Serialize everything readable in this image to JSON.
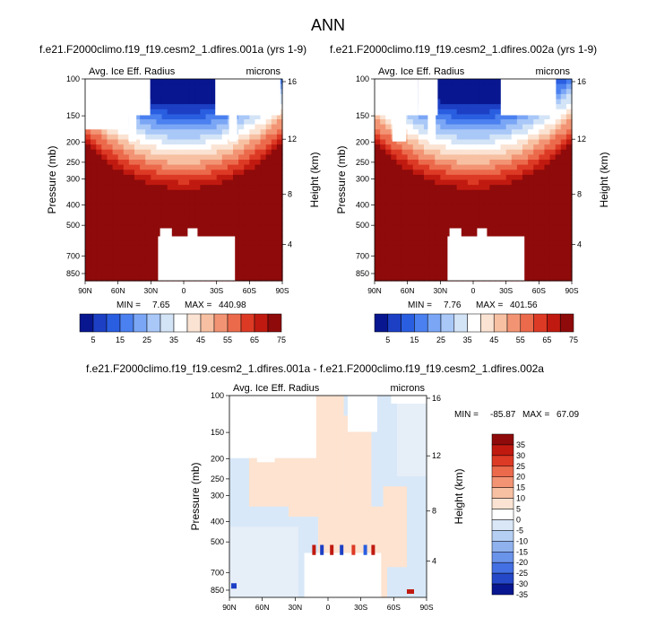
{
  "figure_title": "ANN",
  "chart_data": [
    {
      "type": "heatmap",
      "title": "f.e21.F2000climo.f19_f19.cesm2_1.dfires.001a (yrs 1-9)",
      "left_label": "Avg. Ice Eff. Radius",
      "right_label": "microns",
      "ylabel": "Pressure (mb)",
      "ylabel_right": "Height (km)",
      "x_ticks": [
        "90N",
        "60N",
        "30N",
        "0",
        "30S",
        "60S",
        "90S"
      ],
      "y_ticks": [
        "100",
        "150",
        "200",
        "250",
        "300",
        "400",
        "500",
        "700",
        "850"
      ],
      "y2_ticks": [
        "16",
        "12",
        "8",
        "4"
      ],
      "min": "7.65",
      "max": "440.98",
      "min_label": "MIN =",
      "max_label": "MAX =",
      "colorbar_ticks": [
        "5",
        "15",
        "25",
        "35",
        "45",
        "55",
        "65",
        "75"
      ]
    },
    {
      "type": "heatmap",
      "title": "f.e21.F2000climo.f19_f19.cesm2_1.dfires.002a (yrs 1-9)",
      "left_label": "Avg. Ice Eff. Radius",
      "right_label": "microns",
      "ylabel": "Pressure (mb)",
      "ylabel_right": "Height (km)",
      "x_ticks": [
        "90N",
        "60N",
        "30N",
        "0",
        "30S",
        "60S",
        "90S"
      ],
      "y_ticks": [
        "100",
        "150",
        "200",
        "250",
        "300",
        "400",
        "500",
        "700",
        "850"
      ],
      "y2_ticks": [
        "16",
        "12",
        "8",
        "4"
      ],
      "min": "7.76",
      "max": "401.56",
      "min_label": "MIN =",
      "max_label": "MAX =",
      "colorbar_ticks": [
        "5",
        "15",
        "25",
        "35",
        "45",
        "55",
        "65",
        "75"
      ]
    },
    {
      "type": "heatmap",
      "title": "f.e21.F2000climo.f19_f19.cesm2_1.dfires.001a - f.e21.F2000climo.f19_f19.cesm2_1.dfires.002a",
      "left_label": "Avg. Ice Eff. Radius",
      "right_label": "microns",
      "ylabel": "Pressure (mb)",
      "ylabel_right": "Height (km)",
      "x_ticks": [
        "90N",
        "60N",
        "30N",
        "0",
        "30S",
        "60S",
        "90S"
      ],
      "y_ticks": [
        "100",
        "150",
        "200",
        "250",
        "300",
        "400",
        "500",
        "700",
        "850"
      ],
      "y2_ticks": [
        "16",
        "12",
        "8",
        "4"
      ],
      "min": "-85.87",
      "max": "67.09",
      "min_label": "MIN =",
      "max_label": "MAX =",
      "colorbar_ticks": [
        "35",
        "30",
        "25",
        "20",
        "15",
        "10",
        "5",
        "0",
        "-5",
        "-10",
        "-15",
        "-20",
        "-25",
        "-30",
        "-35"
      ]
    }
  ],
  "colors": {
    "seq_colorbar": [
      "#08178f",
      "#1c3fc4",
      "#2a5ee0",
      "#4a80ef",
      "#7aa6f5",
      "#a9c8f8",
      "#d4e4f7",
      "#ffffff",
      "#fbe3d3",
      "#f7c0a2",
      "#f29474",
      "#ec6a4c",
      "#dd3a25",
      "#c01a10",
      "#8f0a0a"
    ],
    "diff_colorbar": [
      "#8f0a0a",
      "#c01a10",
      "#dd3a25",
      "#ec6a4c",
      "#f29474",
      "#f7c0a2",
      "#fbe3d3",
      "#ffffff",
      "#d9e7f7",
      "#b5cff3",
      "#8fb2ee",
      "#6a93ea",
      "#4370e2",
      "#2448c8",
      "#08178f"
    ],
    "diff_positive": "#fde3d0",
    "diff_negative": "#d8e8f8"
  }
}
